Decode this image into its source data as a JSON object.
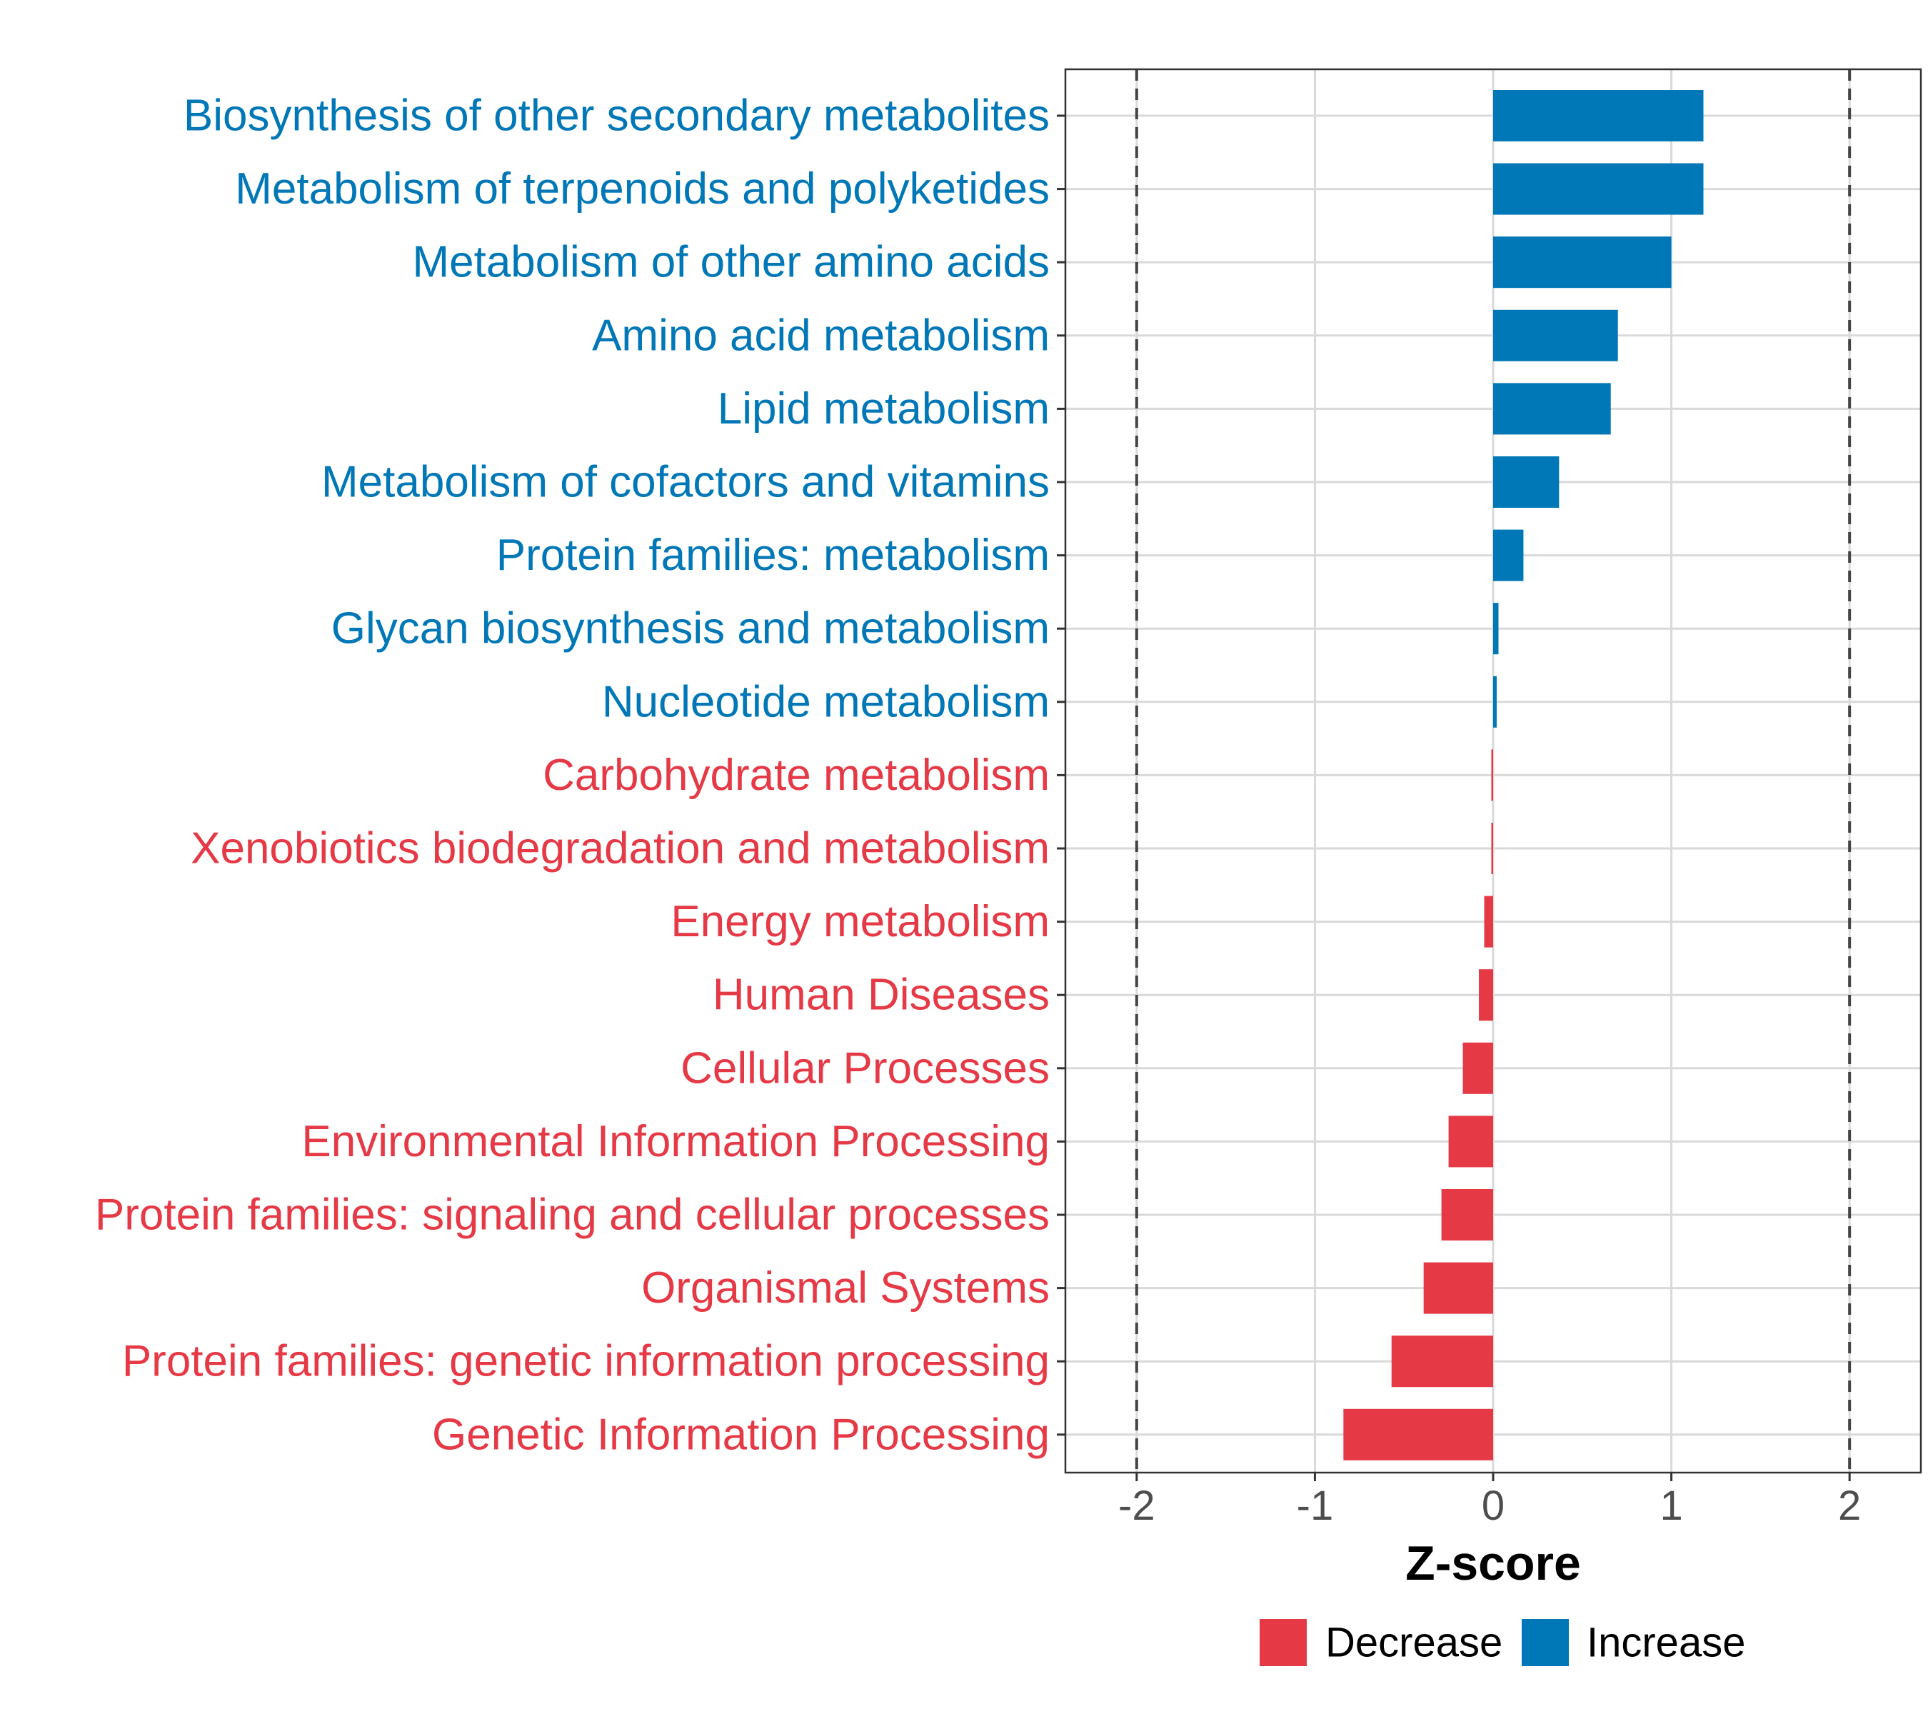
{
  "chart_data": {
    "type": "bar",
    "orientation": "horizontal",
    "title": "",
    "xlabel": "Z-score",
    "ylabel": "",
    "xlim": [
      -2.4,
      2.4
    ],
    "xticks": [
      -2,
      -1,
      0,
      1,
      2
    ],
    "xtick_labels": [
      "-2",
      "-1",
      "0",
      "1",
      "2"
    ],
    "reference_lines": [
      -2,
      2
    ],
    "grid": true,
    "categories": [
      "Biosynthesis of other secondary metabolites",
      "Metabolism of terpenoids and polyketides",
      "Metabolism of other amino acids",
      "Amino acid metabolism",
      "Lipid metabolism",
      "Metabolism of cofactors and vitamins",
      "Protein families: metabolism",
      "Glycan biosynthesis and metabolism",
      "Nucleotide metabolism",
      "Carbohydrate metabolism",
      "Xenobiotics biodegradation and metabolism",
      "Energy metabolism",
      "Human Diseases",
      "Cellular Processes",
      "Environmental Information Processing",
      "Protein families: signaling and cellular processes",
      "Organismal Systems",
      "Protein families: genetic information processing",
      "Genetic Information Processing"
    ],
    "values": [
      1.18,
      1.18,
      1.0,
      0.7,
      0.66,
      0.37,
      0.17,
      0.03,
      0.02,
      -0.01,
      -0.01,
      -0.05,
      -0.08,
      -0.17,
      -0.25,
      -0.29,
      -0.39,
      -0.57,
      -0.84
    ],
    "groups": [
      "Increase",
      "Increase",
      "Increase",
      "Increase",
      "Increase",
      "Increase",
      "Increase",
      "Increase",
      "Increase",
      "Decrease",
      "Decrease",
      "Decrease",
      "Decrease",
      "Decrease",
      "Decrease",
      "Decrease",
      "Decrease",
      "Decrease",
      "Decrease"
    ],
    "legend": [
      {
        "label": "Decrease",
        "color": "#E63946"
      },
      {
        "label": "Increase",
        "color": "#0077B6"
      }
    ],
    "legend_position": "bottom",
    "colors": {
      "Increase": "#0077B6",
      "Decrease": "#E63946"
    }
  }
}
